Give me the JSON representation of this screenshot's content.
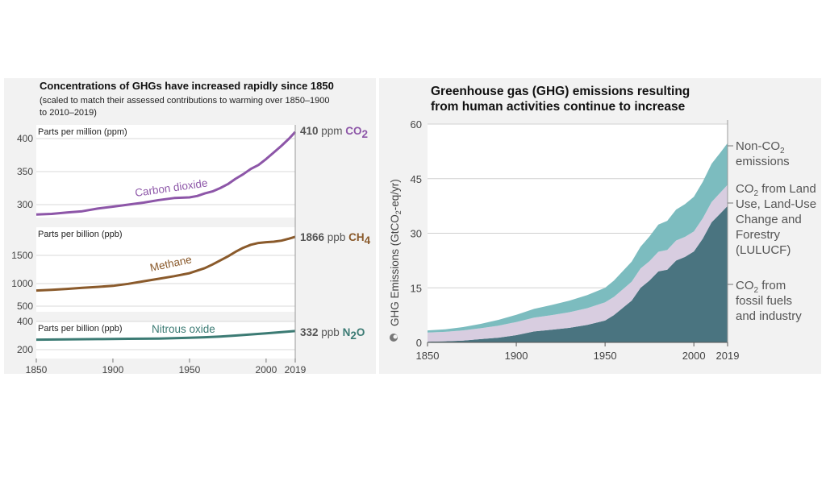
{
  "colors": {
    "co2": "#8d56a8",
    "ch4": "#8a5a2b",
    "n2o": "#3c7b74",
    "fossil": "#4a7480",
    "lulucf": "#d8cde0",
    "nonco2": "#7cbcbf"
  },
  "left": {
    "title": "Concentrations of GHGs have increased rapidly since 1850",
    "subtitle_line1": "(scaled to match their assessed contributions to warming over 1850–1900",
    "subtitle_line2": "to 2010–2019)"
  },
  "chart_data": [
    {
      "type": "line",
      "title": "Concentrations of GHGs have increased rapidly since 1850",
      "x_ticks": [
        "1850",
        "1900",
        "1950",
        "2000",
        "2019"
      ],
      "panels": [
        {
          "name": "Carbon dioxide",
          "unit_label": "Parts per million (ppm)",
          "y_ticks": [
            "400",
            "350",
            "300"
          ],
          "ylim": [
            270,
            420
          ],
          "x": [
            1850,
            1860,
            1870,
            1880,
            1890,
            1900,
            1910,
            1920,
            1930,
            1940,
            1950,
            1955,
            1960,
            1965,
            1970,
            1975,
            1980,
            1985,
            1990,
            1995,
            2000,
            2005,
            2010,
            2015,
            2019
          ],
          "values": [
            285,
            286,
            288,
            290,
            294,
            297,
            300,
            303,
            307,
            310,
            311,
            313,
            317,
            320,
            325,
            331,
            339,
            346,
            354,
            360,
            369,
            379,
            389,
            400,
            410
          ],
          "end_value": "410",
          "end_unit": "ppm",
          "gas_main": "CO",
          "gas_sub": "2"
        },
        {
          "name": "Methane",
          "unit_label": "Parts per billion (ppb)",
          "y_ticks": [
            "1500",
            "1000",
            "500"
          ],
          "ylim": [
            400,
            2150
          ],
          "x": [
            1850,
            1860,
            1870,
            1880,
            1890,
            1900,
            1910,
            1920,
            1930,
            1940,
            1950,
            1955,
            1960,
            1965,
            1970,
            1975,
            1980,
            1985,
            1990,
            1995,
            2000,
            2005,
            2010,
            2015,
            2019
          ],
          "values": [
            808,
            820,
            840,
            860,
            880,
            900,
            940,
            990,
            1040,
            1090,
            1150,
            1200,
            1250,
            1320,
            1400,
            1480,
            1570,
            1650,
            1710,
            1745,
            1760,
            1770,
            1790,
            1830,
            1866
          ],
          "end_value": "1866",
          "end_unit": "ppb",
          "gas_main": "CH",
          "gas_sub": "4"
        },
        {
          "name": "Nitrous oxide",
          "unit_label": "Parts per billion (ppb)",
          "y_ticks": [
            "400",
            "200"
          ],
          "ylim": [
            150,
            460
          ],
          "x": [
            1850,
            1870,
            1890,
            1910,
            1930,
            1950,
            1960,
            1970,
            1980,
            1990,
            2000,
            2010,
            2019
          ],
          "values": [
            271,
            273,
            275,
            277,
            279,
            284,
            288,
            293,
            300,
            308,
            316,
            324,
            332
          ],
          "end_value": "332",
          "end_unit": "ppb",
          "gas_main": "N",
          "gas_sub": "2",
          "gas_tail": "O"
        }
      ]
    },
    {
      "type": "area",
      "title": "Greenhouse gas (GHG) emissions resulting from human activities continue to increase",
      "xlabel": "",
      "ylabel": "GHG Emissions (GtCO2-eq/yr)",
      "ylim": [
        0,
        60
      ],
      "y_ticks": [
        "60",
        "45",
        "30",
        "15",
        "0"
      ],
      "x_ticks": [
        "1850",
        "1900",
        "1950",
        "2000",
        "2019"
      ],
      "x": [
        1850,
        1860,
        1870,
        1880,
        1890,
        1900,
        1910,
        1920,
        1930,
        1940,
        1950,
        1955,
        1960,
        1965,
        1970,
        1975,
        1980,
        1985,
        1990,
        1995,
        2000,
        2005,
        2010,
        2015,
        2019
      ],
      "series": [
        {
          "name": "CO2 from fossil fuels and industry",
          "values": [
            0.2,
            0.3,
            0.5,
            0.9,
            1.3,
            2.0,
            3.0,
            3.5,
            4.0,
            4.8,
            6.0,
            7.5,
            9.5,
            11.5,
            15.0,
            17.0,
            19.5,
            20.0,
            22.5,
            23.5,
            25.0,
            28.5,
            33.0,
            35.5,
            37.5
          ]
        },
        {
          "name": "CO2 from Land Use, Land-Use Change and Forestry (LULUCF)",
          "values": [
            2.5,
            2.6,
            2.8,
            3.0,
            3.3,
            3.6,
            3.8,
            4.0,
            4.3,
            4.6,
            5.0,
            5.0,
            5.1,
            5.2,
            5.3,
            5.3,
            5.4,
            5.4,
            5.5,
            5.5,
            5.5,
            5.6,
            5.6,
            5.7,
            5.8
          ]
        },
        {
          "name": "Non-CO2 emissions",
          "values": [
            0.6,
            0.7,
            0.9,
            1.2,
            1.6,
            2.0,
            2.4,
            2.8,
            3.2,
            3.6,
            4.0,
            4.5,
            5.0,
            5.5,
            6.0,
            6.8,
            7.5,
            8.0,
            8.5,
            9.0,
            9.5,
            10.0,
            10.5,
            11.0,
            11.5
          ]
        }
      ]
    }
  ],
  "right": {
    "title_line1": "Greenhouse gas (GHG) emissions resulting",
    "title_line2": "from human activities continue to increase",
    "ylabel_a": "GHG Emissions (GtCO",
    "ylabel_sub": "2",
    "ylabel_b": "-eq/yr)",
    "legend": {
      "nonco2": {
        "l1_a": "Non-CO",
        "l1_sub": "2",
        "l2": "emissions"
      },
      "lulucf": {
        "l1_a": "CO",
        "l1_sub": "2",
        "l1_b": " from Land",
        "l2": "Use, Land-Use",
        "l3": "Change and",
        "l4": "Forestry",
        "l5": "(LULUCF)"
      },
      "fossil": {
        "l1_a": "CO",
        "l1_sub": "2",
        "l1_b": " from",
        "l2": "fossil fuels",
        "l3": "and industry"
      }
    }
  }
}
